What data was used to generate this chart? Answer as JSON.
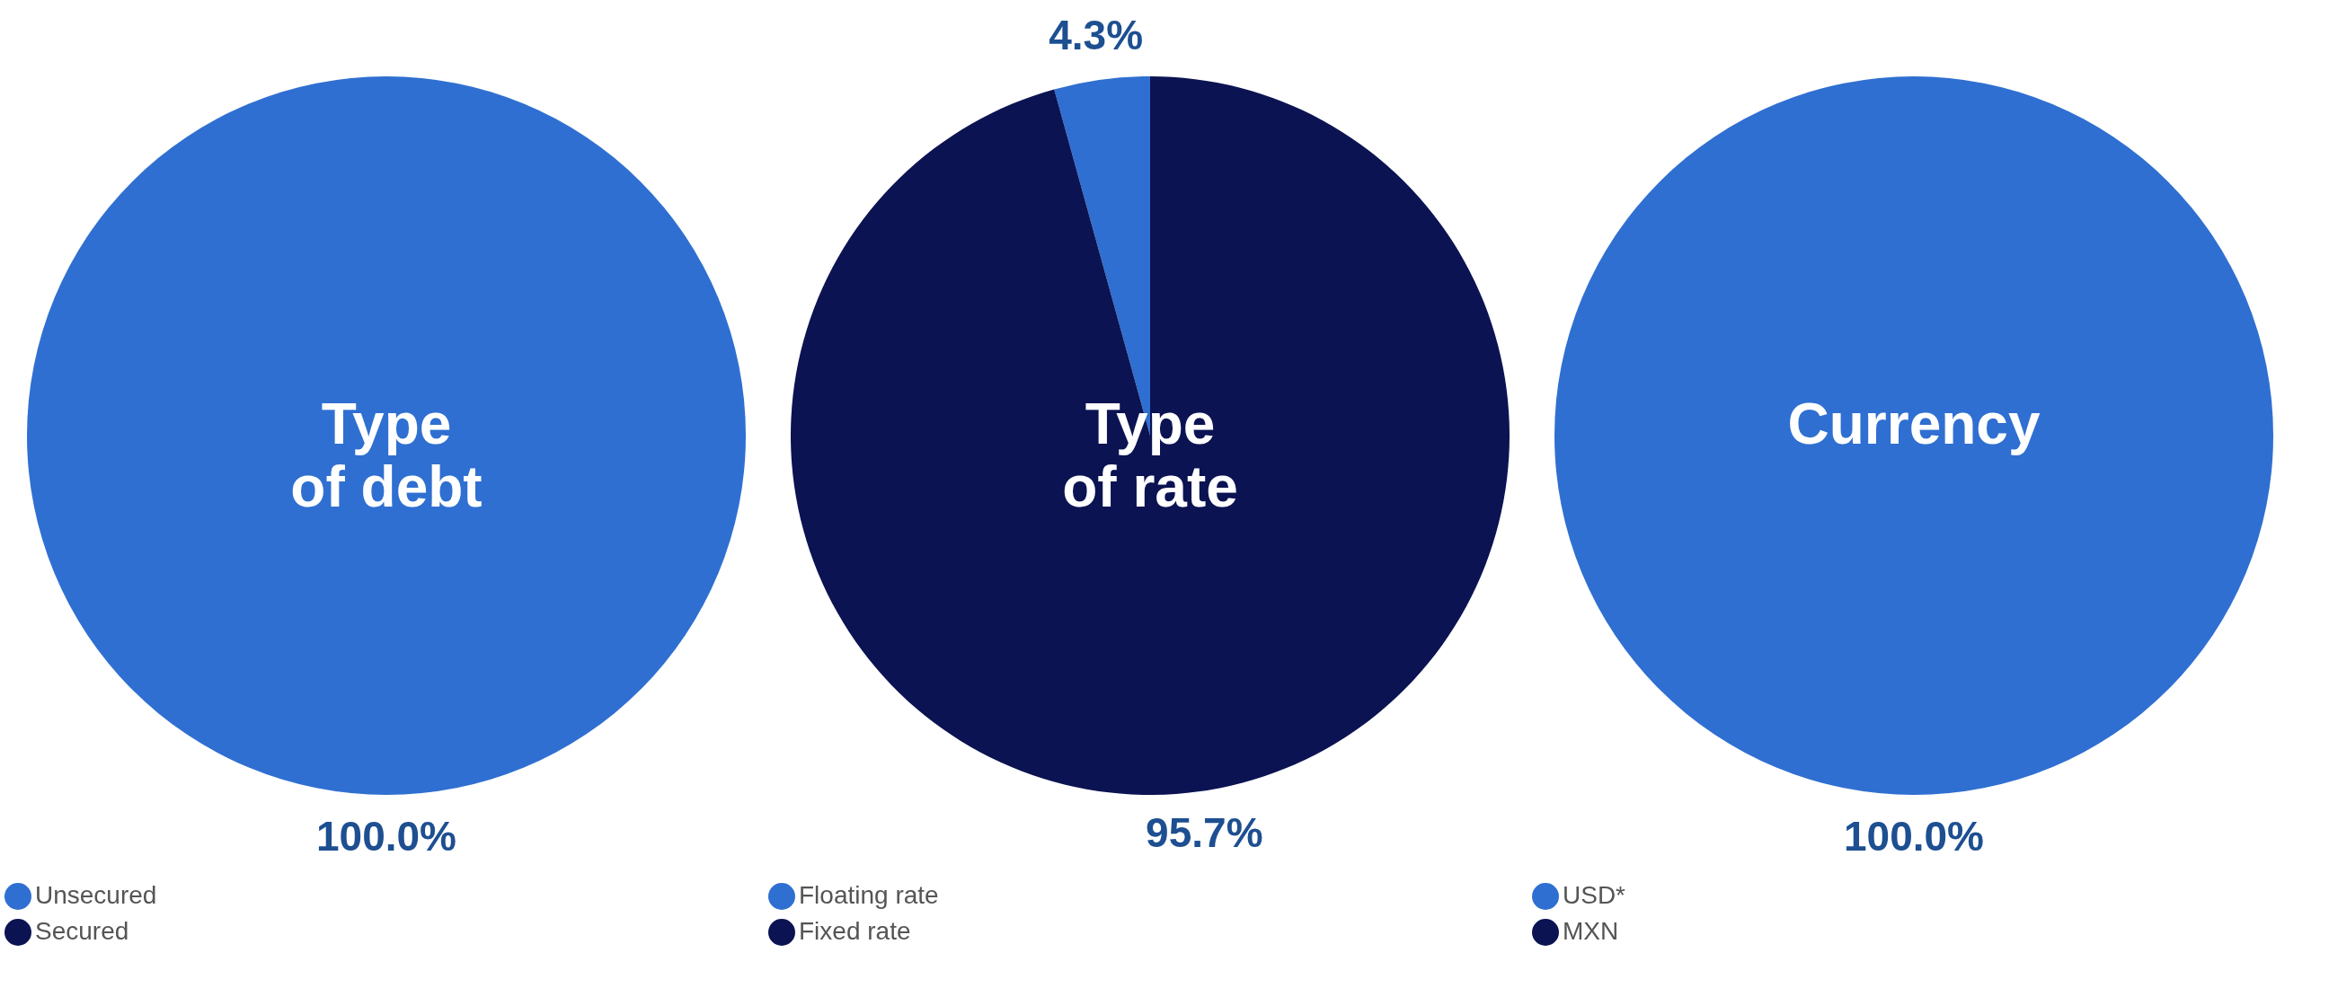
{
  "chart_data": [
    {
      "type": "pie",
      "title": "Type\nof debt",
      "categories": [
        "Unsecured",
        "Secured"
      ],
      "values": [
        100,
        0
      ],
      "colors": [
        "#2f6fd1",
        "#0b1352"
      ],
      "value_labels": [
        "100.0%",
        null
      ],
      "legend": "bottom"
    },
    {
      "type": "pie",
      "title": "Type\nof rate",
      "categories": [
        "Floating rate",
        "Fixed rate"
      ],
      "values": [
        4.3,
        95.7
      ],
      "colors": [
        "#2f6fd1",
        "#0b1352"
      ],
      "value_labels": [
        "4.3%",
        "95.7%"
      ],
      "legend": "bottom"
    },
    {
      "type": "pie",
      "title": "Currency",
      "categories": [
        "USD*",
        "MXN"
      ],
      "values": [
        100,
        0
      ],
      "colors": [
        "#2f6fd1",
        "#0b1352"
      ],
      "value_labels": [
        "100.0%",
        null
      ],
      "legend": "bottom"
    }
  ]
}
